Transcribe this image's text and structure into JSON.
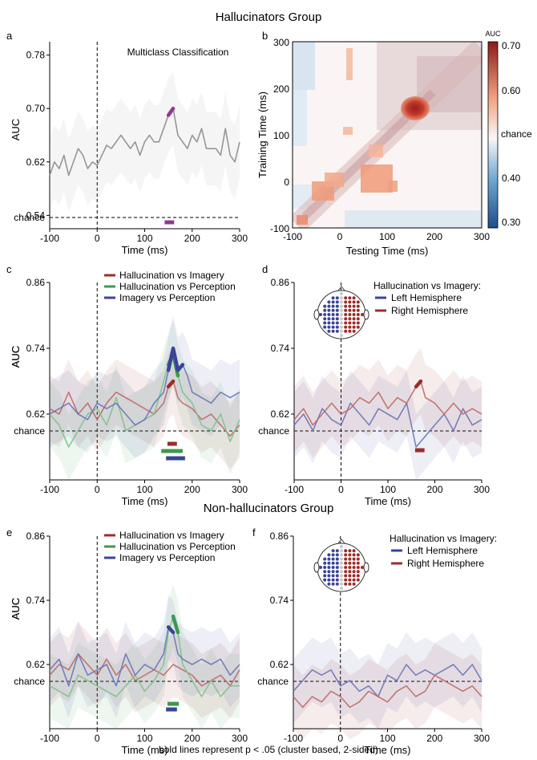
{
  "figure": {
    "group_titles": [
      "Hallucinators Group",
      "Non-hallucinators Group"
    ],
    "footer": "bold lines represent p < .05 (cluster based, 2-sided)"
  },
  "colors": {
    "purple": "#8e3b8f",
    "gray": "#8c8c8c",
    "red": "#9b2d2a",
    "green": "#3b9a4d",
    "blue": "#3a4496",
    "blue_light": "#6b74b8",
    "red_light": "#c06a66"
  },
  "chart_data": [
    {
      "panel": "a",
      "type": "line",
      "title": "Multiclass Classification",
      "xlabel": "Time (ms)",
      "ylabel": "AUC",
      "xlim": [
        -100,
        300
      ],
      "ylim": [
        0.52,
        0.8
      ],
      "xticks": [
        "-100",
        "0",
        "100",
        "200",
        "300"
      ],
      "yticks": [
        "0.78",
        "0.70",
        "0.62",
        "0.54"
      ],
      "ytick_values": [
        0.78,
        0.7,
        0.62,
        0.54
      ],
      "chance_label": "chance",
      "series": [
        {
          "color": "gray",
          "x": [
            -100,
            -90,
            -80,
            -70,
            -60,
            -50,
            -40,
            -30,
            -20,
            -10,
            0,
            10,
            20,
            30,
            40,
            50,
            60,
            70,
            80,
            90,
            100,
            110,
            120,
            130,
            140,
            150,
            160,
            170,
            180,
            190,
            200,
            210,
            220,
            230,
            240,
            250,
            260,
            270,
            280,
            290,
            300
          ],
          "y": [
            0.6,
            0.62,
            0.61,
            0.63,
            0.6,
            0.62,
            0.64,
            0.63,
            0.61,
            0.62,
            0.615,
            0.63,
            0.645,
            0.64,
            0.65,
            0.66,
            0.65,
            0.64,
            0.65,
            0.63,
            0.65,
            0.66,
            0.65,
            0.65,
            0.67,
            0.69,
            0.7,
            0.66,
            0.65,
            0.64,
            0.66,
            0.65,
            0.67,
            0.64,
            0.64,
            0.64,
            0.63,
            0.67,
            0.63,
            0.62,
            0.65
          ],
          "band": 0.055
        }
      ],
      "significant": [
        {
          "series": 0,
          "color": "purple",
          "range": [
            145,
            160
          ]
        }
      ],
      "sig_bars": [
        {
          "color": "purple",
          "range": [
            142,
            162
          ]
        }
      ]
    },
    {
      "panel": "b",
      "type": "heatmap",
      "xlabel": "Testing Time (ms)",
      "ylabel": "Training Time (ms)",
      "xlim": [
        -100,
        300
      ],
      "ylim": [
        -100,
        300
      ],
      "xticks": [
        "-100",
        "0",
        "100",
        "200",
        "300"
      ],
      "yticks": [
        "300",
        "200",
        "100",
        "0",
        "-100"
      ],
      "colorbar": {
        "title": "AUC",
        "range": [
          0.28,
          0.72
        ],
        "ticks": [
          "0.70",
          "0.60",
          "chance",
          "0.40",
          "0.30"
        ],
        "tick_values": [
          0.7,
          0.6,
          0.5,
          0.4,
          0.3
        ]
      },
      "peak": {
        "train": 155,
        "test": 155,
        "auc": 0.72
      }
    },
    {
      "panel": "c",
      "type": "line",
      "xlabel": "Time (ms)",
      "ylabel": "AUC",
      "xlim": [
        -100,
        300
      ],
      "ylim": [
        0.5,
        0.86
      ],
      "xticks": [
        "-100",
        "0",
        "100",
        "200",
        "300"
      ],
      "yticks": [
        "0.86",
        "0.74",
        "0.62"
      ],
      "ytick_values": [
        0.86,
        0.74,
        0.62
      ],
      "chance_label": "chance",
      "legend": [
        "Hallucination vs Imagery",
        "Hallucination vs Perception",
        "Imagery vs Perception"
      ],
      "series": [
        {
          "name": "Hallucination vs Imagery",
          "color": "red",
          "x": [
            -100,
            -80,
            -60,
            -40,
            -20,
            0,
            20,
            40,
            60,
            80,
            100,
            120,
            140,
            150,
            160,
            170,
            180,
            200,
            220,
            240,
            260,
            280,
            300
          ],
          "y": [
            0.63,
            0.62,
            0.66,
            0.62,
            0.64,
            0.61,
            0.64,
            0.66,
            0.65,
            0.64,
            0.63,
            0.62,
            0.64,
            0.67,
            0.68,
            0.65,
            0.64,
            0.63,
            0.61,
            0.62,
            0.6,
            0.58,
            0.6
          ],
          "band": 0.06
        },
        {
          "name": "Hallucination vs Perception",
          "color": "green",
          "x": [
            -100,
            -80,
            -60,
            -40,
            -20,
            0,
            20,
            40,
            60,
            80,
            100,
            120,
            140,
            150,
            160,
            170,
            180,
            200,
            220,
            240,
            260,
            280,
            300
          ],
          "y": [
            0.62,
            0.6,
            0.56,
            0.59,
            0.62,
            0.63,
            0.6,
            0.65,
            0.59,
            0.6,
            0.61,
            0.62,
            0.68,
            0.71,
            0.73,
            0.69,
            0.66,
            0.64,
            0.6,
            0.59,
            0.62,
            0.57,
            0.61
          ],
          "band": 0.06
        },
        {
          "name": "Imagery vs Perception",
          "color": "blue",
          "x": [
            -100,
            -80,
            -60,
            -40,
            -20,
            0,
            20,
            40,
            60,
            80,
            100,
            120,
            140,
            150,
            160,
            170,
            180,
            190,
            200,
            220,
            240,
            260,
            280,
            300
          ],
          "y": [
            0.62,
            0.63,
            0.64,
            0.62,
            0.61,
            0.64,
            0.63,
            0.64,
            0.62,
            0.6,
            0.61,
            0.64,
            0.66,
            0.7,
            0.74,
            0.7,
            0.71,
            0.69,
            0.66,
            0.65,
            0.64,
            0.66,
            0.65,
            0.66
          ],
          "band": 0.06
        }
      ],
      "significant": [
        {
          "series": 0,
          "color": "red",
          "range": [
            150,
            165
          ]
        },
        {
          "series": 1,
          "color": "green",
          "range": [
            145,
            175
          ]
        },
        {
          "series": 2,
          "color": "blue",
          "range": [
            145,
            185
          ]
        }
      ],
      "sig_bars": [
        {
          "color": "red",
          "range": [
            148,
            168
          ]
        },
        {
          "color": "green",
          "range": [
            135,
            180
          ]
        },
        {
          "color": "blue",
          "range": [
            145,
            185
          ]
        }
      ]
    },
    {
      "panel": "d",
      "type": "line",
      "xlabel": "Time (ms)",
      "ylabel": "AUC",
      "xlim": [
        -100,
        300
      ],
      "ylim": [
        0.5,
        0.86
      ],
      "xticks": [
        "-100",
        "0",
        "100",
        "200",
        "300"
      ],
      "yticks": [
        "0.86",
        "0.74",
        "0.62"
      ],
      "ytick_values": [
        0.86,
        0.74,
        0.62
      ],
      "chance_label": "chance",
      "legend_title": "Hallucination vs Imagery:",
      "legend": [
        "Left Hemisphere",
        "Right Hemisphere"
      ],
      "series": [
        {
          "name": "Left Hemisphere",
          "color": "blue",
          "x": [
            -100,
            -80,
            -60,
            -40,
            -20,
            0,
            20,
            40,
            60,
            80,
            100,
            120,
            140,
            160,
            180,
            200,
            220,
            240,
            260,
            280,
            300
          ],
          "y": [
            0.6,
            0.62,
            0.59,
            0.63,
            0.61,
            0.6,
            0.64,
            0.62,
            0.6,
            0.63,
            0.62,
            0.61,
            0.64,
            0.56,
            0.58,
            0.6,
            0.62,
            0.59,
            0.63,
            0.6,
            0.61
          ],
          "band": 0.06
        },
        {
          "name": "Right Hemisphere",
          "color": "red",
          "x": [
            -100,
            -80,
            -60,
            -40,
            -20,
            0,
            20,
            40,
            60,
            80,
            100,
            120,
            140,
            160,
            170,
            180,
            200,
            220,
            240,
            260,
            280,
            300
          ],
          "y": [
            0.61,
            0.63,
            0.6,
            0.62,
            0.64,
            0.62,
            0.63,
            0.65,
            0.64,
            0.66,
            0.63,
            0.65,
            0.64,
            0.67,
            0.68,
            0.65,
            0.64,
            0.62,
            0.64,
            0.62,
            0.63,
            0.62
          ],
          "band": 0.06
        }
      ],
      "significant": [
        {
          "series": 1,
          "color": "red",
          "range": [
            160,
            175
          ]
        }
      ],
      "sig_bars": [
        {
          "color": "red",
          "range": [
            158,
            178
          ]
        }
      ]
    },
    {
      "panel": "e",
      "type": "line",
      "xlabel": "Time (ms)",
      "ylabel": "AUC",
      "xlim": [
        -100,
        300
      ],
      "ylim": [
        0.5,
        0.86
      ],
      "xticks": [
        "-100",
        "0",
        "100",
        "200",
        "300"
      ],
      "yticks": [
        "0.86",
        "0.74",
        "0.62"
      ],
      "ytick_values": [
        0.86,
        0.74,
        0.62
      ],
      "chance_label": "chance",
      "legend": [
        "Hallucination vs Imagery",
        "Hallucination vs Perception",
        "Imagery vs Perception"
      ],
      "series": [
        {
          "name": "Hallucination vs Imagery",
          "color": "red",
          "x": [
            -100,
            -80,
            -60,
            -40,
            -20,
            0,
            20,
            40,
            60,
            80,
            100,
            120,
            140,
            160,
            180,
            200,
            220,
            240,
            260,
            280,
            300
          ],
          "y": [
            0.6,
            0.62,
            0.61,
            0.64,
            0.62,
            0.6,
            0.63,
            0.6,
            0.62,
            0.59,
            0.6,
            0.61,
            0.6,
            0.62,
            0.61,
            0.6,
            0.58,
            0.59,
            0.6,
            0.58,
            0.61
          ],
          "band": 0.06
        },
        {
          "name": "Hallucination vs Perception",
          "color": "green",
          "x": [
            -100,
            -80,
            -60,
            -40,
            -20,
            0,
            20,
            40,
            60,
            80,
            100,
            120,
            140,
            150,
            160,
            170,
            180,
            200,
            220,
            240,
            260,
            280,
            300
          ],
          "y": [
            0.58,
            0.57,
            0.56,
            0.6,
            0.59,
            0.58,
            0.57,
            0.56,
            0.58,
            0.6,
            0.57,
            0.59,
            0.62,
            0.68,
            0.71,
            0.68,
            0.62,
            0.59,
            0.56,
            0.59,
            0.56,
            0.58,
            0.58
          ],
          "band": 0.06
        },
        {
          "name": "Imagery vs Perception",
          "color": "blue",
          "x": [
            -100,
            -80,
            -60,
            -40,
            -20,
            0,
            20,
            40,
            60,
            80,
            100,
            120,
            140,
            150,
            160,
            170,
            180,
            200,
            220,
            240,
            260,
            280,
            300
          ],
          "y": [
            0.61,
            0.63,
            0.58,
            0.64,
            0.6,
            0.61,
            0.62,
            0.58,
            0.64,
            0.6,
            0.62,
            0.61,
            0.64,
            0.69,
            0.68,
            0.64,
            0.63,
            0.62,
            0.63,
            0.62,
            0.63,
            0.6,
            0.62
          ],
          "band": 0.06
        }
      ],
      "significant": [
        {
          "series": 1,
          "color": "green",
          "range": [
            155,
            170
          ]
        },
        {
          "series": 2,
          "color": "blue",
          "range": [
            145,
            160
          ]
        }
      ],
      "sig_bars": [
        {
          "color": "green",
          "range": [
            148,
            172
          ]
        },
        {
          "color": "blue",
          "range": [
            145,
            168
          ]
        }
      ]
    },
    {
      "panel": "f",
      "type": "line",
      "xlabel": "Time (ms)",
      "ylabel": "AUC",
      "xlim": [
        -100,
        300
      ],
      "ylim": [
        0.5,
        0.86
      ],
      "xticks": [
        "-100",
        "0",
        "100",
        "200",
        "300"
      ],
      "yticks": [
        "0.86",
        "0.74",
        "0.62"
      ],
      "ytick_values": [
        0.86,
        0.74,
        0.62
      ],
      "chance_label": "chance",
      "legend_title": "Hallucination vs Imagery:",
      "legend": [
        "Left Hemisphere",
        "Right Hemisphere"
      ],
      "series": [
        {
          "name": "Left Hemisphere",
          "color": "blue",
          "x": [
            -100,
            -80,
            -60,
            -40,
            -20,
            0,
            20,
            40,
            60,
            80,
            100,
            120,
            140,
            160,
            180,
            200,
            220,
            240,
            260,
            280,
            300
          ],
          "y": [
            0.57,
            0.59,
            0.61,
            0.6,
            0.61,
            0.58,
            0.59,
            0.57,
            0.58,
            0.56,
            0.6,
            0.59,
            0.62,
            0.6,
            0.61,
            0.6,
            0.61,
            0.62,
            0.6,
            0.62,
            0.59
          ],
          "band": 0.06
        },
        {
          "name": "Right Hemisphere",
          "color": "red",
          "x": [
            -100,
            -80,
            -60,
            -40,
            -20,
            0,
            20,
            40,
            60,
            80,
            100,
            120,
            140,
            160,
            180,
            200,
            220,
            240,
            260,
            280,
            300
          ],
          "y": [
            0.56,
            0.54,
            0.56,
            0.55,
            0.57,
            0.56,
            0.54,
            0.55,
            0.57,
            0.56,
            0.55,
            0.57,
            0.58,
            0.56,
            0.57,
            0.6,
            0.59,
            0.58,
            0.57,
            0.58,
            0.56
          ],
          "band": 0.06
        }
      ],
      "significant": [],
      "sig_bars": []
    }
  ],
  "panel_labels": [
    "a",
    "b",
    "c",
    "d",
    "e",
    "f"
  ]
}
